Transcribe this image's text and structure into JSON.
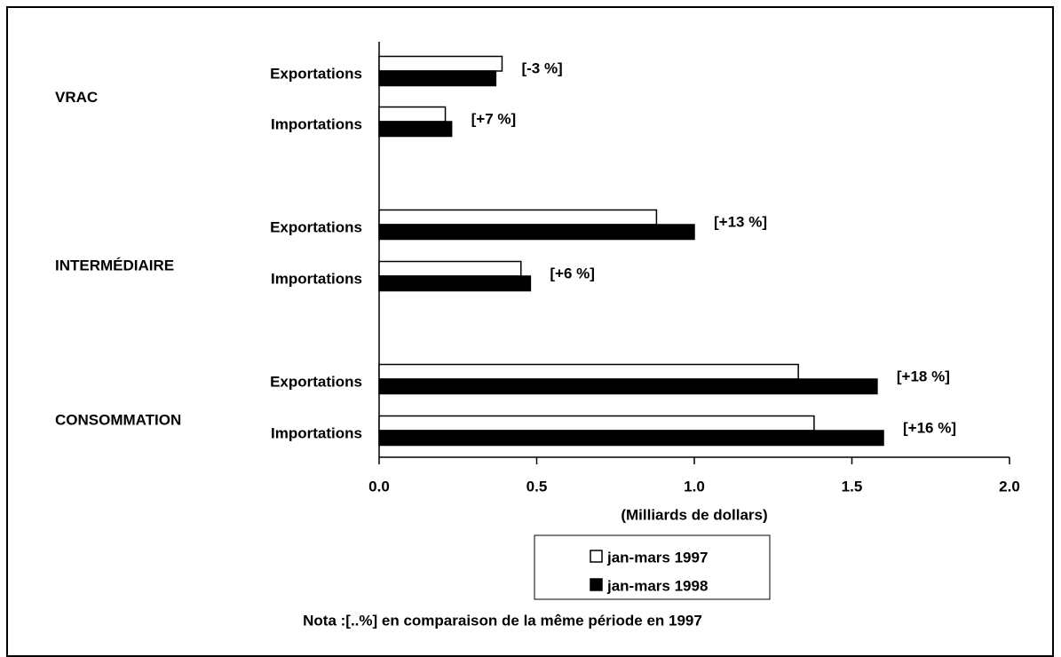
{
  "chart_data": {
    "type": "hbar",
    "groups": [
      "VRAC",
      "INTERMÉDIAIRE",
      "CONSOMMATION"
    ],
    "categories": [
      "Exportations",
      "Importations",
      "Exportations",
      "Importations",
      "Exportations",
      "Importations"
    ],
    "series": [
      {
        "name": "jan-mars 1997",
        "color": "#ffffff",
        "values": [
          0.39,
          0.21,
          0.88,
          0.45,
          1.33,
          1.38
        ]
      },
      {
        "name": "jan-mars 1998",
        "color": "#000000",
        "values": [
          0.37,
          0.23,
          1.0,
          0.48,
          1.58,
          1.6
        ]
      }
    ],
    "annotations": [
      "[-3 %]",
      "[+7 %]",
      "[+13 %]",
      "[+6 %]",
      "[+18 %]",
      "[+16 %]"
    ],
    "xlabel": "(Milliards de dollars)",
    "xlim": [
      0,
      2
    ],
    "xticks": [
      {
        "value": 0,
        "label": "0.0"
      },
      {
        "value": 0.5,
        "label": "0.5"
      },
      {
        "value": 1,
        "label": "1.0"
      },
      {
        "value": 1.5,
        "label": "1.5"
      },
      {
        "value": 2,
        "label": "2.0"
      }
    ],
    "note": "Nota :[..%] en comparaison de la même période en 1997"
  }
}
